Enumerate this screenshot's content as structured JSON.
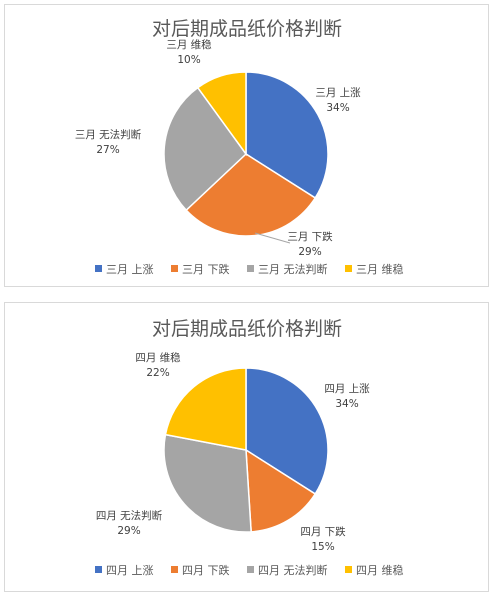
{
  "chart_data": [
    {
      "type": "pie",
      "title": "对后期成品纸价格判断",
      "categories": [
        "三月 上涨",
        "三月 下跌",
        "三月 无法判断",
        "三月 维稳"
      ],
      "values": [
        34,
        29,
        27,
        10
      ],
      "value_labels": [
        "34%",
        "29%",
        "27%",
        "10%"
      ],
      "colors": [
        "#4472c4",
        "#ed7d31",
        "#a5a5a5",
        "#ffc000"
      ],
      "legend": "bottom"
    },
    {
      "type": "pie",
      "title": "对后期成品纸价格判断",
      "categories": [
        "四月 上涨",
        "四月 下跌",
        "四月 无法判断",
        "四月 维稳"
      ],
      "values": [
        34,
        15,
        29,
        22
      ],
      "value_labels": [
        "34%",
        "15%",
        "29%",
        "22%"
      ],
      "colors": [
        "#4472c4",
        "#ed7d31",
        "#a5a5a5",
        "#ffc000"
      ],
      "legend": "bottom"
    }
  ]
}
